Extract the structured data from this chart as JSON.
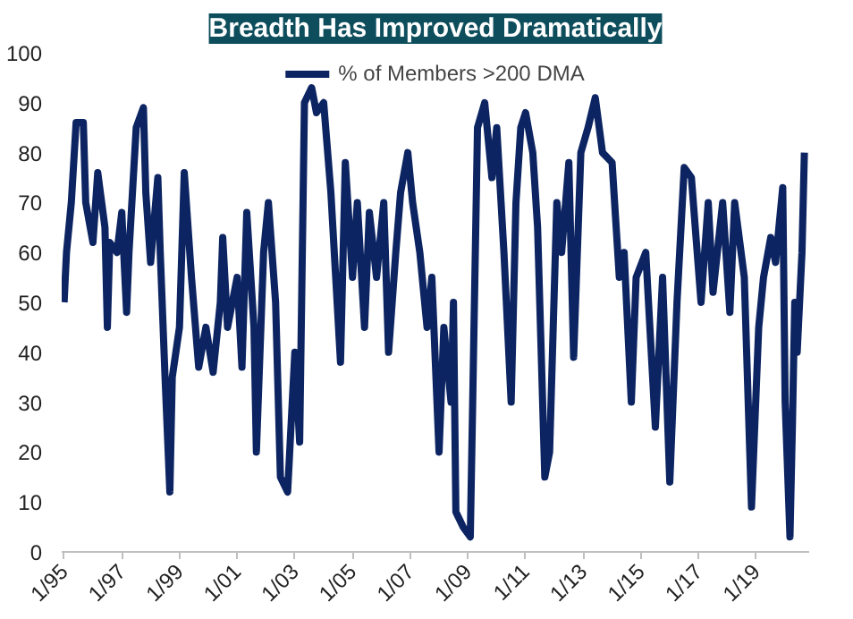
{
  "chart_data": {
    "type": "line",
    "title": "Breadth Has Improved Dramatically",
    "x": [
      "1995-01",
      "1995-02",
      "1995-04",
      "1995-06",
      "1995-09",
      "1995-10",
      "1996-01",
      "1996-03",
      "1996-06",
      "1996-07",
      "1996-08",
      "1996-11",
      "1997-01",
      "1997-03",
      "1997-04",
      "1997-07",
      "1997-10",
      "1997-11",
      "1998-01",
      "1998-04",
      "1998-05",
      "1998-07",
      "1998-09",
      "1998-10",
      "1999-01",
      "1999-03",
      "1999-06",
      "1999-09",
      "1999-12",
      "2000-03",
      "2000-06",
      "2000-07",
      "2000-09",
      "2001-01",
      "2001-03",
      "2001-05",
      "2001-08",
      "2001-09",
      "2001-12",
      "2002-02",
      "2002-05",
      "2002-07",
      "2002-10",
      "2003-01",
      "2003-03",
      "2003-05",
      "2003-08",
      "2003-10",
      "2004-01",
      "2004-04",
      "2004-06",
      "2004-08",
      "2004-10",
      "2005-01",
      "2005-03",
      "2005-06",
      "2005-08",
      "2005-11",
      "2006-02",
      "2006-04",
      "2006-07",
      "2006-09",
      "2006-12",
      "2007-02",
      "2007-05",
      "2007-08",
      "2007-10",
      "2008-01",
      "2008-03",
      "2008-06",
      "2008-07",
      "2008-08",
      "2008-11",
      "2009-02",
      "2009-03",
      "2009-05",
      "2009-08",
      "2009-11",
      "2010-01",
      "2010-04",
      "2010-07",
      "2010-09",
      "2010-11",
      "2011-01",
      "2011-04",
      "2011-06",
      "2011-09",
      "2011-11",
      "2012-02",
      "2012-04",
      "2012-07",
      "2012-09",
      "2012-12",
      "2013-03",
      "2013-06",
      "2013-09",
      "2014-01",
      "2014-04",
      "2014-06",
      "2014-09",
      "2014-11",
      "2015-03",
      "2015-07",
      "2015-10",
      "2016-01",
      "2016-04",
      "2016-07",
      "2016-10",
      "2017-02",
      "2017-05",
      "2017-07",
      "2017-11",
      "2018-02",
      "2018-04",
      "2018-08",
      "2018-11",
      "2019-02",
      "2019-04",
      "2019-07",
      "2019-09",
      "2019-12",
      "2020-01",
      "2020-03",
      "2020-04",
      "2020-05",
      "2020-06",
      "2020-08",
      "2020-09"
    ],
    "series": [
      {
        "name": "% of Members >200 DMA",
        "color": "#0c2461",
        "values": [
          50,
          60,
          70,
          86,
          86,
          70,
          62,
          76,
          65,
          45,
          62,
          60,
          68,
          48,
          60,
          85,
          89,
          72,
          58,
          75,
          60,
          35,
          12,
          35,
          45,
          76,
          55,
          37,
          45,
          36,
          50,
          63,
          45,
          55,
          37,
          68,
          45,
          20,
          60,
          70,
          50,
          15,
          12,
          40,
          22,
          90,
          93,
          88,
          90,
          72,
          55,
          38,
          78,
          55,
          70,
          45,
          68,
          55,
          70,
          40,
          60,
          72,
          80,
          70,
          60,
          45,
          55,
          20,
          45,
          30,
          50,
          8,
          5,
          3,
          30,
          85,
          90,
          75,
          85,
          60,
          30,
          70,
          85,
          88,
          80,
          65,
          15,
          20,
          70,
          60,
          78,
          39,
          80,
          85,
          91,
          80,
          78,
          55,
          60,
          30,
          55,
          60,
          25,
          55,
          14,
          50,
          77,
          75,
          50,
          70,
          52,
          70,
          48,
          70,
          55,
          9,
          45,
          55,
          63,
          58,
          73,
          30,
          3,
          25,
          50,
          40,
          60,
          80
        ]
      }
    ],
    "xlim": [
      "1994-12",
      "2020-11"
    ],
    "xticks": [
      {
        "value": "1995-01",
        "label": "1/95"
      },
      {
        "value": "1997-01",
        "label": "1/97"
      },
      {
        "value": "1999-01",
        "label": "1/99"
      },
      {
        "value": "2001-01",
        "label": "1/01"
      },
      {
        "value": "2003-01",
        "label": "1/03"
      },
      {
        "value": "2005-01",
        "label": "1/05"
      },
      {
        "value": "2007-01",
        "label": "1/07"
      },
      {
        "value": "2009-01",
        "label": "1/09"
      },
      {
        "value": "2011-01",
        "label": "1/11"
      },
      {
        "value": "2013-01",
        "label": "1/13"
      },
      {
        "value": "2015-01",
        "label": "1/15"
      },
      {
        "value": "2017-01",
        "label": "1/17"
      },
      {
        "value": "2019-01",
        "label": "1/19"
      }
    ],
    "ylim": [
      0,
      100
    ],
    "yticks": [
      0,
      10,
      20,
      30,
      40,
      50,
      60,
      70,
      80,
      90,
      100
    ],
    "grid": false,
    "legend": "top",
    "line_style": "solid",
    "marker": "none"
  }
}
